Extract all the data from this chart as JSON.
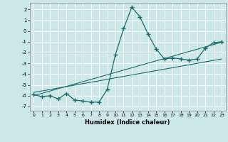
{
  "xlabel": "Humidex (Indice chaleur)",
  "bg_color": "#cce8e8",
  "grid_color": "#ffffff",
  "line_color": "#1a6b6b",
  "xlim": [
    -0.5,
    23.5
  ],
  "ylim": [
    -7.4,
    2.6
  ],
  "xticks": [
    0,
    1,
    2,
    3,
    4,
    5,
    6,
    7,
    8,
    9,
    10,
    11,
    12,
    13,
    14,
    15,
    16,
    17,
    18,
    19,
    20,
    21,
    22,
    23
  ],
  "yticks": [
    -7,
    -6,
    -5,
    -4,
    -3,
    -2,
    -1,
    0,
    1,
    2
  ],
  "curve1_x": [
    0,
    1,
    2,
    3,
    4,
    5,
    6,
    7,
    8,
    9,
    10,
    11,
    12,
    13,
    14,
    15,
    16,
    17,
    18,
    19,
    20,
    21,
    22,
    23
  ],
  "curve1_y": [
    -5.9,
    -6.1,
    -6.0,
    -6.3,
    -5.8,
    -6.4,
    -6.5,
    -6.6,
    -6.6,
    -5.4,
    -2.2,
    0.2,
    2.2,
    1.3,
    -0.3,
    -1.7,
    -2.6,
    -2.5,
    -2.6,
    -2.7,
    -2.6,
    -1.6,
    -1.1,
    -1.0
  ],
  "line1_x": [
    0,
    23
  ],
  "line1_y": [
    -6.0,
    -1.05
  ],
  "line2_x": [
    0,
    23
  ],
  "line2_y": [
    -5.7,
    -2.6
  ]
}
